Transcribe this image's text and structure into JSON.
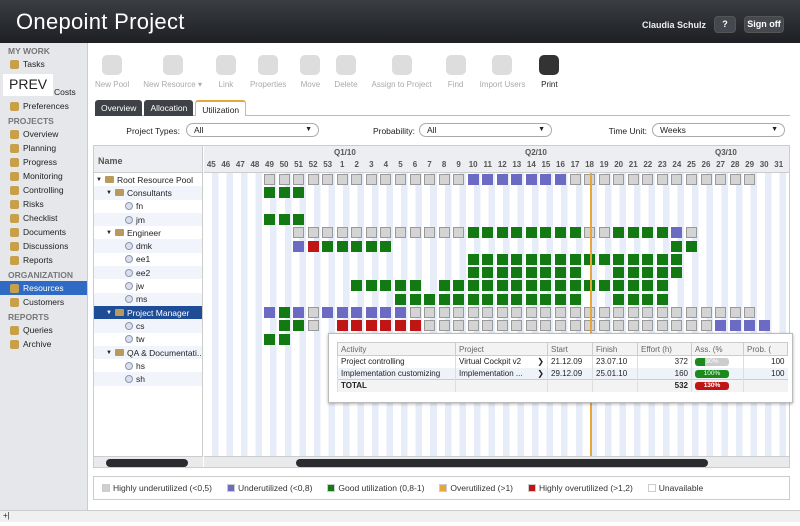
{
  "header": {
    "logo": "Onepoint Project",
    "user": "Claudia Schulz",
    "help": "?",
    "signoff": "Sign off"
  },
  "sidebar": {
    "overlay": "PREV",
    "sections": [
      {
        "title": "MY WORK",
        "items": [
          {
            "label": "Tasks"
          },
          {
            "label": "Costs"
          },
          {
            "label": "Preferences"
          }
        ]
      },
      {
        "title": "PROJECTS",
        "items": [
          {
            "label": "Overview"
          },
          {
            "label": "Planning"
          },
          {
            "label": "Progress"
          },
          {
            "label": "Monitoring"
          },
          {
            "label": "Controlling"
          },
          {
            "label": "Risks"
          },
          {
            "label": "Checklist"
          },
          {
            "label": "Documents"
          },
          {
            "label": "Discussions"
          },
          {
            "label": "Reports"
          }
        ]
      },
      {
        "title": "ORGANIZATION",
        "items": [
          {
            "label": "Resources",
            "active": true
          },
          {
            "label": "Customers"
          }
        ]
      },
      {
        "title": "REPORTS",
        "items": [
          {
            "label": "Queries"
          },
          {
            "label": "Archive"
          }
        ]
      }
    ]
  },
  "toolbar": [
    {
      "label": "New Pool"
    },
    {
      "label": "New Resource ▾"
    },
    {
      "label": "Link"
    },
    {
      "label": "Properties"
    },
    {
      "label": "Move"
    },
    {
      "label": "Delete"
    },
    {
      "label": "Assign to Project"
    },
    {
      "label": "Find"
    },
    {
      "label": "Import Users"
    },
    {
      "label": "Print",
      "enabled": true
    }
  ],
  "tabs": [
    {
      "label": "Overview"
    },
    {
      "label": "Allocation"
    },
    {
      "label": "Utilization",
      "selected": true
    }
  ],
  "filters": {
    "project_types": {
      "label": "Project Types:",
      "value": "All"
    },
    "probability": {
      "label": "Probability:",
      "value": "All"
    },
    "time_unit": {
      "label": "Time Unit:",
      "value": "Weeks"
    }
  },
  "gantt": {
    "name_header": "Name",
    "quarters": [
      "Q1/10",
      "Q2/10",
      "Q3/10"
    ],
    "weeks": [
      "45",
      "46",
      "47",
      "48",
      "49",
      "50",
      "51",
      "52",
      "53",
      "1",
      "2",
      "3",
      "4",
      "5",
      "6",
      "7",
      "8",
      "9",
      "10",
      "11",
      "12",
      "13",
      "14",
      "15",
      "16",
      "17",
      "18",
      "19",
      "20",
      "21",
      "22",
      "23",
      "24",
      "25",
      "26",
      "27",
      "28",
      "29",
      "30",
      "31"
    ],
    "current_week": "18",
    "rows": [
      {
        "name": "Root Resource Pool",
        "type": "pool",
        "level": 0,
        "cells": "....ggggggggggggggbbbbbbbggggggggggggg.."
      },
      {
        "name": "Consultants",
        "type": "pool",
        "level": 1,
        "cells": "....GGG................................."
      },
      {
        "name": "fn",
        "type": "person",
        "level": 2,
        "cells": ""
      },
      {
        "name": "jm",
        "type": "person",
        "level": 2,
        "cells": "....GGG................................."
      },
      {
        "name": "Engineer",
        "type": "pool",
        "level": 1,
        "cells": "......ggggggggggggGGGGGGGGggGGGGbg......"
      },
      {
        "name": "dmk",
        "type": "person",
        "level": 2,
        "cells": "......brGGGGG...................GG......"
      },
      {
        "name": "ee1",
        "type": "person",
        "level": 2,
        "cells": "..................GGGGGGGGGGGGGGG......."
      },
      {
        "name": "ee2",
        "type": "person",
        "level": 2,
        "cells": "..................GGGGGGGG..GGGGG......."
      },
      {
        "name": "jw",
        "type": "person",
        "level": 2,
        "cells": "..........GGGGG.GGGGGGGGGGGGGGGG........"
      },
      {
        "name": "ms",
        "type": "person",
        "level": 2,
        "cells": ".............GGGGGGGGGGGGG..GGGG........"
      },
      {
        "name": "Project Manager",
        "type": "pool",
        "level": 1,
        "selected": true,
        "cells": "....bGbgbbbbbbgggggggggggggggggggggggg.."
      },
      {
        "name": "cs",
        "type": "person",
        "level": 2,
        "cells": ".....GGg.rrrrrrggggggggggggggggggggbbbb.."
      },
      {
        "name": "tw",
        "type": "person",
        "level": 2,
        "cells": "....GG.................................."
      },
      {
        "name": "QA & Documentati...",
        "type": "pool",
        "level": 1,
        "cells": ""
      },
      {
        "name": "hs",
        "type": "person",
        "level": 2,
        "cells": ""
      },
      {
        "name": "sh",
        "type": "person",
        "level": 2,
        "cells": ""
      }
    ]
  },
  "tooltip": {
    "headers": [
      "Activity",
      "Project",
      "Start",
      "Finish",
      "Effort (h)",
      "Ass. (%",
      "Prob. ("
    ],
    "rows": [
      {
        "activity": "Project controlling",
        "project": "Virtual Cockpit v2",
        "start": "21.12.09",
        "finish": "23.07.10",
        "effort": "372",
        "assign": "30%",
        "assign_value": 30,
        "prob": "100"
      },
      {
        "activity": "Implementation customizing",
        "project": "Implementation ...",
        "start": "29.12.09",
        "finish": "25.01.10",
        "effort": "160",
        "assign": "100%",
        "assign_value": 100,
        "prob": "100"
      }
    ],
    "total": {
      "label": "TOTAL",
      "effort": "532",
      "assign": "130%",
      "assign_value": 130
    }
  },
  "legend": [
    {
      "label": "Highly underutilized (<0,5)",
      "color": "#cfcfcf"
    },
    {
      "label": "Underutilized (<0,8)",
      "color": "#6b6bc4"
    },
    {
      "label": "Good utilization (0,8-1)",
      "color": "#137a13"
    },
    {
      "label": "Overutilized (>1)",
      "color": "#e8a53a"
    },
    {
      "label": "Highly overutilized (>1,2)",
      "color": "#c01515"
    },
    {
      "label": "Unavailable",
      "color": "#ffffff"
    }
  ],
  "colors": {
    "g": "#d4d4d4",
    "b": "#6b6bc4",
    "G": "#137a13",
    "o": "#e8a53a",
    "r": "#c01515",
    "today": "#e8a53a",
    "header_bg": "#232529",
    "selection": "#1e4c97"
  },
  "status": "+|"
}
